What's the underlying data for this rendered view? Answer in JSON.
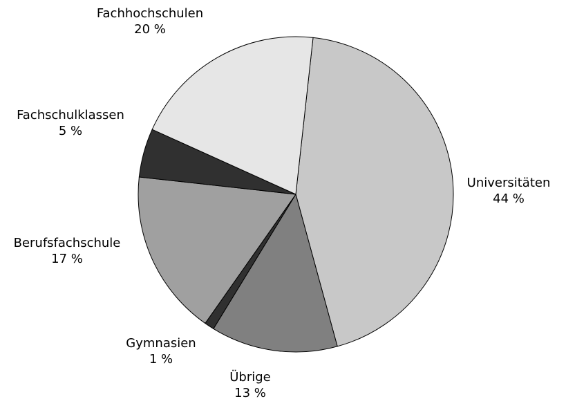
{
  "chart_data": {
    "type": "pie",
    "categories": [
      "Universitäten",
      "Übrige",
      "Gymnasien",
      "Berufsfachschule",
      "Fachschulklassen",
      "Fachhochschulen"
    ],
    "values": [
      44,
      13,
      1,
      17,
      5,
      20
    ],
    "value_labels": [
      "44 %",
      "13 %",
      "1 %",
      "17 %",
      "5 %",
      "20 %"
    ],
    "colors": [
      "#c8c8c8",
      "#808080",
      "#303030",
      "#a0a0a0",
      "#303030",
      "#e6e6e6"
    ]
  }
}
